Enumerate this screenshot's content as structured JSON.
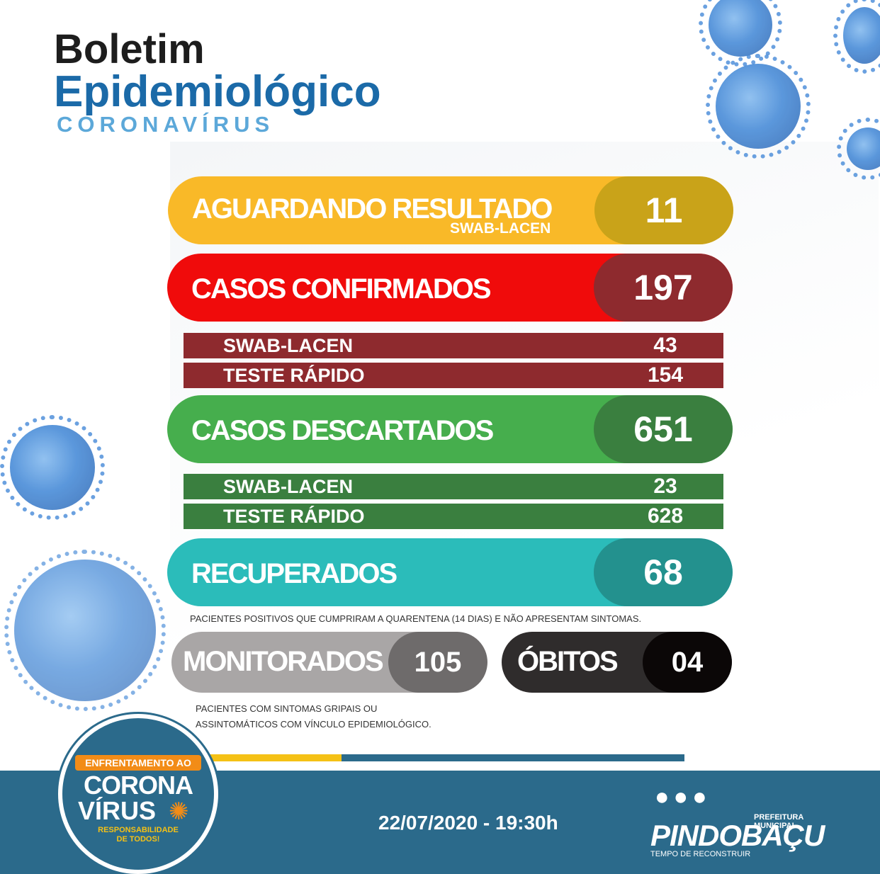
{
  "header": {
    "line1": "Boletim",
    "line2": "Epidemiológico",
    "line3": "CORONAVÍRUS"
  },
  "aguardando": {
    "label": "AGUARDANDO RESULTADO",
    "sublabel": "SWAB-LACEN",
    "value": "11"
  },
  "confirmados": {
    "label": "CASOS CONFIRMADOS",
    "value": "197",
    "rows": [
      {
        "label": "SWAB-LACEN",
        "value": "43"
      },
      {
        "label": "TESTE RÁPIDO",
        "value": "154"
      }
    ]
  },
  "descartados": {
    "label": "CASOS DESCARTADOS",
    "value": "651",
    "rows": [
      {
        "label": "SWAB-LACEN",
        "value": "23"
      },
      {
        "label": "TESTE RÁPIDO",
        "value": "628"
      }
    ]
  },
  "recuperados": {
    "label": "RECUPERADOS",
    "value": "68",
    "note": "PACIENTES POSITIVOS QUE CUMPRIRAM A QUARENTENA (14 DIAS) E NÃO APRESENTAM SINTOMAS."
  },
  "monitorados": {
    "label": "MONITORADOS",
    "value": "105",
    "note_line1": "PACIENTES COM SINTOMAS GRIPAIS  OU",
    "note_line2": "ASSINTOMÁTICOS COM VÍNCULO EPIDEMIOLÓGICO."
  },
  "obitos": {
    "label": "ÓBITOS",
    "value": "04"
  },
  "footer": {
    "date": "22/07/2020 - 19:30h",
    "badge": {
      "line1": "ENFRENTAMENTO AO",
      "line2": "CORONA",
      "line3": "VÍRUS",
      "line4": "RESPONSABILIDADE",
      "line5": "DE TODOS!"
    },
    "logo": {
      "top": "PREFEITURA MUNICIPAL",
      "name": "PINDOBAÇU",
      "tagline": "TEMPO DE RECONSTRUIR"
    }
  },
  "colors": {
    "yellow": "#f9b928",
    "yellow_dark": "#c9a319",
    "red": "#f00b0b",
    "red_dark": "#8e2a2e",
    "green": "#46ae4d",
    "green_dark": "#3a7f3f",
    "teal": "#2bbcba",
    "teal_dark": "#23918e",
    "gray": "#a9a6a6",
    "gray_dark": "#6e6b6b",
    "black": "#2f2c2c",
    "black_dark": "#0b0707",
    "footer_blue": "#2b6a8b"
  }
}
